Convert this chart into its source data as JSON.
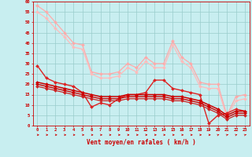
{
  "background_color": "#c8eef0",
  "grid_color": "#99cccc",
  "xlabel": "Vent moyen/en rafales ( km/h )",
  "xlabel_color": "#cc0000",
  "tick_color": "#cc0000",
  "xlim": [
    -0.5,
    23.5
  ],
  "ylim": [
    0,
    60
  ],
  "yticks": [
    0,
    5,
    10,
    15,
    20,
    25,
    30,
    35,
    40,
    45,
    50,
    55,
    60
  ],
  "xticks": [
    0,
    1,
    2,
    3,
    4,
    5,
    6,
    7,
    8,
    9,
    10,
    11,
    12,
    13,
    14,
    15,
    16,
    17,
    18,
    19,
    20,
    21,
    22,
    23
  ],
  "lines": [
    {
      "x": [
        0,
        1,
        2,
        3,
        4,
        5,
        6,
        7,
        8,
        9,
        10,
        11,
        12,
        13,
        14,
        15,
        16,
        17,
        18,
        19,
        20,
        21,
        22,
        23
      ],
      "y": [
        58,
        55,
        50,
        45,
        40,
        39,
        26,
        25,
        25,
        26,
        30,
        28,
        33,
        30,
        30,
        41,
        33,
        30,
        21,
        20,
        20,
        5,
        14,
        15
      ],
      "color": "#ffaaaa",
      "lw": 0.9
    },
    {
      "x": [
        0,
        1,
        2,
        3,
        4,
        5,
        6,
        7,
        8,
        9,
        10,
        11,
        12,
        13,
        14,
        15,
        16,
        17,
        18,
        19,
        20,
        21,
        22,
        23
      ],
      "y": [
        55,
        52,
        47,
        43,
        38,
        37,
        25,
        23,
        23,
        24,
        28,
        26,
        31,
        28,
        28,
        39,
        31,
        28,
        19,
        18,
        18,
        4,
        12,
        13
      ],
      "color": "#ffbbbb",
      "lw": 0.9
    },
    {
      "x": [
        0,
        1,
        2,
        3,
        4,
        5,
        6,
        7,
        8,
        9,
        10,
        11,
        12,
        13,
        14,
        15,
        16,
        17,
        18,
        19,
        20,
        21,
        22,
        23
      ],
      "y": [
        29,
        23,
        21,
        20,
        19,
        16,
        9,
        11,
        10,
        13,
        15,
        15,
        16,
        22,
        22,
        18,
        17,
        16,
        15,
        1,
        5,
        6,
        8,
        7
      ],
      "color": "#dd2222",
      "lw": 1.0
    },
    {
      "x": [
        0,
        1,
        2,
        3,
        4,
        5,
        6,
        7,
        8,
        9,
        10,
        11,
        12,
        13,
        14,
        15,
        16,
        17,
        18,
        19,
        20,
        21,
        22,
        23
      ],
      "y": [
        21,
        20,
        19,
        18,
        17,
        16,
        15,
        14,
        14,
        14,
        15,
        15,
        15,
        15,
        15,
        14,
        14,
        13,
        12,
        10,
        8,
        5,
        7,
        7
      ],
      "color": "#cc0000",
      "lw": 1.1
    },
    {
      "x": [
        0,
        1,
        2,
        3,
        4,
        5,
        6,
        7,
        8,
        9,
        10,
        11,
        12,
        13,
        14,
        15,
        16,
        17,
        18,
        19,
        20,
        21,
        22,
        23
      ],
      "y": [
        20,
        19,
        18,
        17,
        16,
        15,
        14,
        13,
        13,
        13,
        14,
        14,
        14,
        14,
        14,
        13,
        13,
        12,
        11,
        9,
        7,
        4,
        6,
        6
      ],
      "color": "#cc0000",
      "lw": 1.0
    },
    {
      "x": [
        0,
        1,
        2,
        3,
        4,
        5,
        6,
        7,
        8,
        9,
        10,
        11,
        12,
        13,
        14,
        15,
        16,
        17,
        18,
        19,
        20,
        21,
        22,
        23
      ],
      "y": [
        19,
        18,
        17,
        16,
        15,
        14,
        13,
        12,
        12,
        12,
        13,
        13,
        13,
        13,
        13,
        12,
        12,
        11,
        10,
        8,
        6,
        3,
        5,
        5
      ],
      "color": "#cc2222",
      "lw": 0.9
    }
  ],
  "arrow_color": "#cc0000",
  "markersize": 2.0
}
